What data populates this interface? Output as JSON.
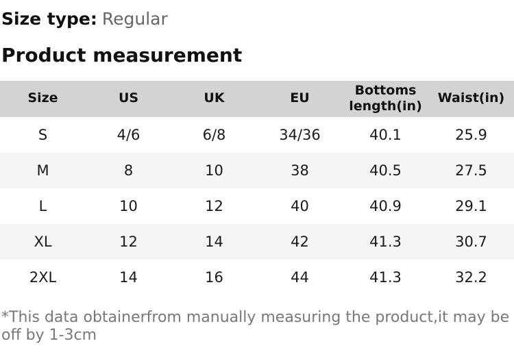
{
  "size_type": {
    "label": "Size type:",
    "value": "Regular"
  },
  "section_title": "Product measurement",
  "table": {
    "columns": [
      "Size",
      "US",
      "UK",
      "EU",
      "Bottoms length(in)",
      "Waist(in)"
    ],
    "rows": [
      [
        "S",
        "4/6",
        "6/8",
        "34/36",
        "40.1",
        "25.9"
      ],
      [
        "M",
        "8",
        "10",
        "38",
        "40.5",
        "27.5"
      ],
      [
        "L",
        "10",
        "12",
        "40",
        "40.9",
        "29.1"
      ],
      [
        "XL",
        "12",
        "14",
        "42",
        "41.3",
        "30.7"
      ],
      [
        "2XL",
        "14",
        "16",
        "44",
        "41.3",
        "32.2"
      ]
    ]
  },
  "footnote": "*This data obtainerfrom manually measuring the product,it may be off by 1-3cm",
  "colors": {
    "header_bg": "#d3d3d3",
    "alt_row_bg": "#f5f5f5",
    "text": "#1a1a1a",
    "muted_text": "#666666",
    "footnote_text": "#787878"
  }
}
